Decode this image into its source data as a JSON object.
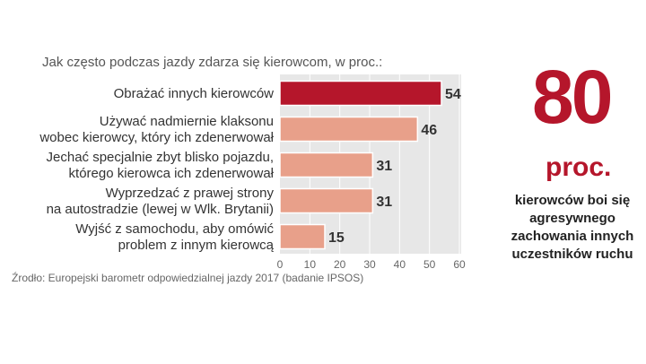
{
  "question": "Jak często podczas jazdy zdarza się kierowcom, w proc.:",
  "source": "Źrodło: Europejski barometr odpowiedzialnej jazdy 2017 (badanie IPSOS)",
  "highlight": {
    "number": "80",
    "unit": "proc.",
    "description": "kierowców boi się agresywnego zachowania innych uczestników ruchu"
  },
  "colors": {
    "accent": "#b5162b",
    "bar": "#e8a08a",
    "panel": "#e7e7e7",
    "grid": "#ffffff"
  },
  "chart_data": {
    "type": "bar",
    "orientation": "horizontal",
    "categories": [
      [
        "Obrażać innych kierowców"
      ],
      [
        "Używać nadmiernie klaksonu",
        "wobec kierowcy, który ich zdenerwował"
      ],
      [
        "Jechać specjalnie zbyt blisko pojazdu,",
        "którego kierowca ich zdenerwował"
      ],
      [
        "Wyprzedzać z prawej strony",
        "na autostradzie (lewej w Wlk. Brytanii)"
      ],
      [
        "Wyjść z samochodu, aby omówić",
        "problem z innym kierowcą"
      ]
    ],
    "values": [
      54,
      46,
      31,
      31,
      15
    ],
    "value_labels": [
      "54",
      "46",
      "31",
      "31",
      "15"
    ],
    "xlim": [
      0,
      60
    ],
    "xticks": [
      0,
      10,
      20,
      30,
      40,
      50,
      60
    ],
    "xtick_labels": [
      "0",
      "10",
      "20",
      "30",
      "40",
      "50",
      "60"
    ],
    "grid": true,
    "highlighted_index": 0
  }
}
